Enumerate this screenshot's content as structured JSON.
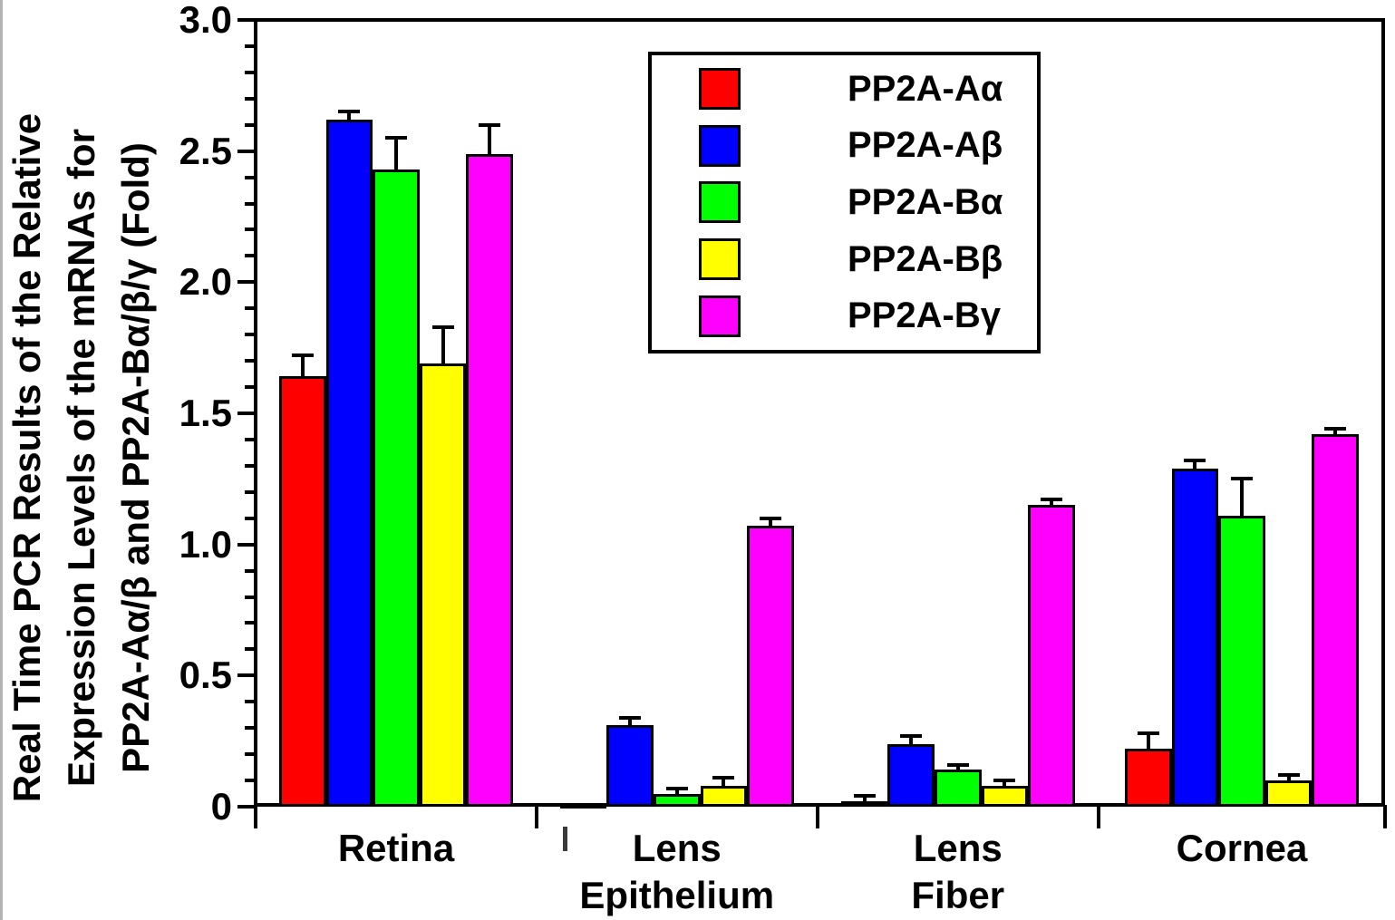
{
  "chart_data": {
    "type": "bar",
    "title": "",
    "ylabel": "Real Time PCR Results of the Relative Expression Levels of the mRNAs for PP2A-Aα/β and PP2A-Bα/β/γ (Fold)",
    "ylabel_lines": [
      "Real Time PCR Results of the Relative",
      "Expression Levels of the mRNAs for",
      "PP2A-Aα/β and PP2A-Bα/β/γ (Fold)"
    ],
    "xlabel": "",
    "ylim": [
      0,
      3.0
    ],
    "y_major_tick_values": [
      0,
      0.5,
      1.0,
      1.5,
      2.0,
      2.5,
      3.0
    ],
    "y_tick_labels": [
      "0",
      "0.5",
      "1.0",
      "1.5",
      "2.0",
      "2.5",
      "3.0"
    ],
    "y_minor_step": 0.1,
    "grid": false,
    "legend_position": "top-center",
    "categories": [
      "Retina",
      "Lens Epithelium",
      "Lens Fiber",
      "Cornea"
    ],
    "category_label_lines": [
      [
        "Retina"
      ],
      [
        "Lens",
        "Epithelium"
      ],
      [
        "Lens",
        "Fiber"
      ],
      [
        "Cornea"
      ]
    ],
    "series": [
      {
        "name": "PP2A-Aα",
        "color": "#ff0000",
        "values": [
          1.64,
          0.01,
          0.02,
          0.22
        ],
        "errors": [
          0.08,
          0.0,
          0.02,
          0.06
        ]
      },
      {
        "name": "PP2A-Aβ",
        "color": "#0000ff",
        "values": [
          2.62,
          0.31,
          0.24,
          1.29
        ],
        "errors": [
          0.03,
          0.03,
          0.03,
          0.03
        ]
      },
      {
        "name": "PP2A-Bα",
        "color": "#00ff00",
        "values": [
          2.43,
          0.05,
          0.14,
          1.11
        ],
        "errors": [
          0.12,
          0.02,
          0.02,
          0.14
        ]
      },
      {
        "name": "PP2A-Bβ",
        "color": "#ffff00",
        "values": [
          1.69,
          0.08,
          0.08,
          0.1
        ],
        "errors": [
          0.14,
          0.03,
          0.02,
          0.02
        ]
      },
      {
        "name": "PP2A-Bγ",
        "color": "#ff00ff",
        "values": [
          2.49,
          1.07,
          1.15,
          1.42
        ],
        "errors": [
          0.11,
          0.03,
          0.02,
          0.02
        ]
      }
    ]
  }
}
